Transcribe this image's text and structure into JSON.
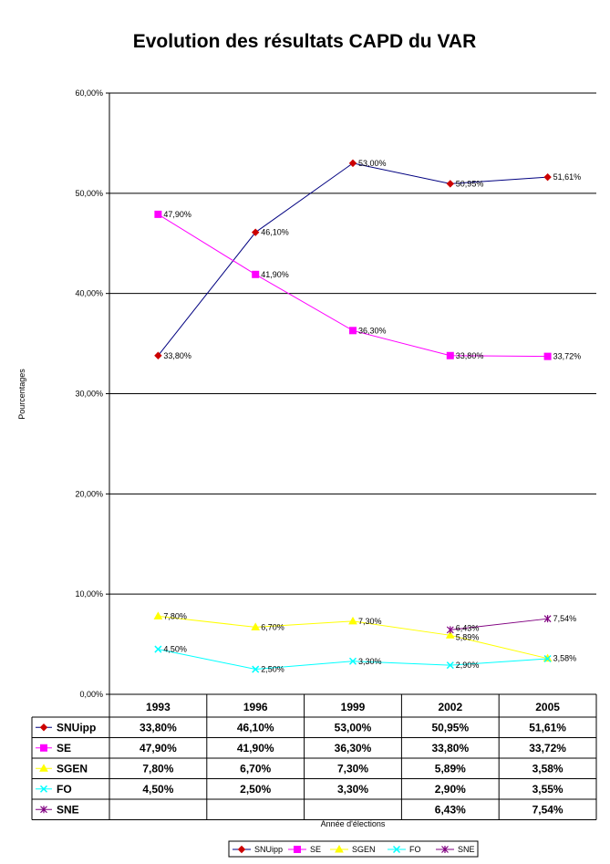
{
  "chart_data": {
    "type": "line",
    "title": "Evolution des résultats CAPD du VAR",
    "xlabel": "Année d'élections",
    "ylabel": "Pourcentages",
    "categories": [
      "1993",
      "1996",
      "1999",
      "2002",
      "2005"
    ],
    "ylim": [
      0,
      60
    ],
    "yticks": [
      "0,00%",
      "10,00%",
      "20,00%",
      "30,00%",
      "40,00%",
      "50,00%",
      "60,00%"
    ],
    "grid": true,
    "legend_position": "bottom",
    "series": [
      {
        "name": "SNUipp",
        "color": "#cc0000",
        "line_color": "#000080",
        "marker": "diamond",
        "values": [
          33.8,
          46.1,
          53.0,
          50.95,
          51.61
        ],
        "labels": [
          "33,80%",
          "46,10%",
          "53,00%",
          "50,95%",
          "51,61%"
        ],
        "table": [
          "33,80%",
          "46,10%",
          "53,00%",
          "50,95%",
          "51,61%"
        ]
      },
      {
        "name": "SE",
        "color": "#ff00ff",
        "line_color": "#ff00ff",
        "marker": "square",
        "values": [
          47.9,
          41.9,
          36.3,
          33.8,
          33.72
        ],
        "labels": [
          "47,90%",
          "41,90%",
          "36,30%",
          "33,80%",
          "33,72%"
        ],
        "table": [
          "47,90%",
          "41,90%",
          "36,30%",
          "33,80%",
          "33,72%"
        ]
      },
      {
        "name": "SGEN",
        "color": "#ffff00",
        "line_color": "#ffff00",
        "marker": "triangle",
        "values": [
          7.8,
          6.7,
          7.3,
          5.89,
          3.58
        ],
        "labels": [
          "7,80%",
          "6,70%",
          "7,30%",
          "5,89%",
          "3,58%"
        ],
        "table": [
          "7,80%",
          "6,70%",
          "7,30%",
          "5,89%",
          "3,58%"
        ]
      },
      {
        "name": "FO",
        "color": "#00ffff",
        "line_color": "#00ffff",
        "marker": "x",
        "values": [
          4.5,
          2.5,
          3.3,
          2.9,
          3.55
        ],
        "labels": [
          "4,50%",
          "2,50%",
          "3,30%",
          "2,90%",
          ""
        ],
        "table": [
          "4,50%",
          "2,50%",
          "3,30%",
          "2,90%",
          "3,55%"
        ]
      },
      {
        "name": "SNE",
        "color": "#800080",
        "line_color": "#800080",
        "marker": "star",
        "values": [
          null,
          null,
          null,
          6.43,
          7.54
        ],
        "labels": [
          "",
          "",
          "",
          "6,43%",
          "7,54%"
        ],
        "table": [
          "",
          "",
          "",
          "6,43%",
          "7,54%"
        ]
      }
    ]
  }
}
